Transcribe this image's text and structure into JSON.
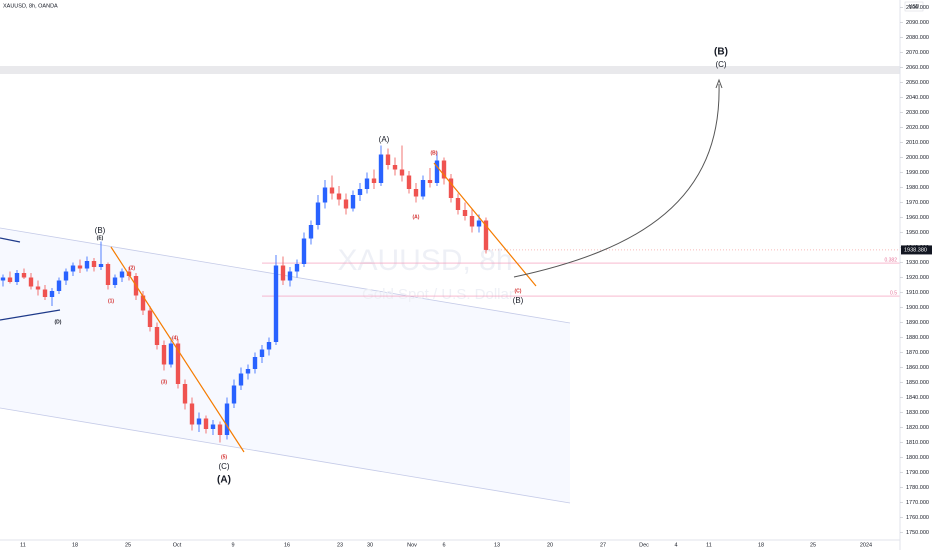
{
  "header": {
    "symbol": "XAUUSD, 8h, OANDA",
    "currency": "USD"
  },
  "chart_data": {
    "type": "candlestick",
    "watermark": "XAUUSD, 8h",
    "watermark_sub": "Gold Spot / U.S. Dollar",
    "up_color": "#2962ff",
    "down_color": "#ef5350",
    "open": [
      1918,
      1920,
      1917,
      1923,
      1920,
      1914,
      1912,
      1907,
      1911,
      1918,
      1924,
      1928,
      1926,
      1931,
      1927,
      1929,
      1915,
      1920,
      1924,
      1921,
      1908,
      1898,
      1887,
      1875,
      1862,
      1876,
      1849,
      1836,
      1822,
      1826,
      1819,
      1822,
      1815,
      1836,
      1848,
      1856,
      1859,
      1867,
      1872,
      1877,
      1928,
      1918,
      1924,
      1929,
      1946,
      1955,
      1970,
      1980,
      1976,
      1972,
      1966,
      1975,
      1979,
      1986,
      1983,
      2002,
      1995,
      1992,
      1988,
      1979,
      1974,
      1985,
      1983,
      1998,
      1986,
      1973,
      1965,
      1961,
      1954,
      1958
    ],
    "high": [
      1922,
      1924,
      1925,
      1926,
      1923,
      1918,
      1915,
      1913,
      1920,
      1926,
      1930,
      1932,
      1934,
      1933,
      1944,
      1930,
      1922,
      1926,
      1927,
      1923,
      1911,
      1901,
      1890,
      1878,
      1880,
      1879,
      1852,
      1840,
      1830,
      1828,
      1825,
      1824,
      1840,
      1852,
      1860,
      1862,
      1870,
      1875,
      1880,
      1935,
      1934,
      1927,
      1932,
      1950,
      1958,
      1975,
      1985,
      1988,
      1981,
      1976,
      1978,
      1983,
      1990,
      1992,
      2008,
      2006,
      2000,
      2008,
      1991,
      1983,
      1988,
      1993,
      2004,
      2000,
      1989,
      1976,
      1970,
      1966,
      1962,
      1960
    ],
    "low": [
      1914,
      1916,
      1915,
      1919,
      1912,
      1908,
      1905,
      1901,
      1909,
      1915,
      1921,
      1923,
      1924,
      1924,
      1925,
      1912,
      1913,
      1917,
      1918,
      1905,
      1895,
      1884,
      1872,
      1858,
      1860,
      1846,
      1832,
      1818,
      1817,
      1816,
      1815,
      1810,
      1812,
      1833,
      1845,
      1852,
      1856,
      1863,
      1868,
      1875,
      1915,
      1914,
      1920,
      1927,
      1942,
      1952,
      1966,
      1972,
      1968,
      1962,
      1964,
      1971,
      1976,
      1979,
      1981,
      1992,
      1988,
      1984,
      1976,
      1970,
      1972,
      1980,
      1981,
      1982,
      1970,
      1962,
      1958,
      1950,
      1950,
      1936
    ],
    "close": [
      1920,
      1917,
      1923,
      1920,
      1914,
      1912,
      1907,
      1911,
      1918,
      1924,
      1928,
      1926,
      1931,
      1927,
      1929,
      1915,
      1920,
      1924,
      1921,
      1908,
      1898,
      1887,
      1875,
      1862,
      1876,
      1849,
      1836,
      1822,
      1826,
      1819,
      1822,
      1815,
      1836,
      1848,
      1856,
      1859,
      1867,
      1872,
      1877,
      1928,
      1918,
      1924,
      1929,
      1946,
      1955,
      1970,
      1980,
      1976,
      1972,
      1966,
      1975,
      1979,
      1986,
      1983,
      2002,
      1995,
      1992,
      1988,
      1979,
      1974,
      1985,
      1983,
      1998,
      1986,
      1973,
      1965,
      1961,
      1954,
      1958,
      1938.38
    ],
    "last_price_label": "1938.380",
    "ylim": [
      1745,
      2105
    ],
    "yticks": [
      {
        "value": 2100,
        "label": "2100.000"
      },
      {
        "value": 2090,
        "label": "2090.000"
      },
      {
        "value": 2080,
        "label": "2080.000"
      },
      {
        "value": 2070,
        "label": "2070.000"
      },
      {
        "value": 2060,
        "label": "2060.000"
      },
      {
        "value": 2050,
        "label": "2050.000"
      },
      {
        "value": 2040,
        "label": "2040.000"
      },
      {
        "value": 2030,
        "label": "2030.000"
      },
      {
        "value": 2020,
        "label": "2020.000"
      },
      {
        "value": 2010,
        "label": "2010.000"
      },
      {
        "value": 2000,
        "label": "2000.000"
      },
      {
        "value": 1990,
        "label": "1990.000"
      },
      {
        "value": 1980,
        "label": "1980.000"
      },
      {
        "value": 1970,
        "label": "1970.000"
      },
      {
        "value": 1960,
        "label": "1960.000"
      },
      {
        "value": 1950,
        "label": "1950.000"
      },
      {
        "value": 1940,
        "label": "1940.000"
      },
      {
        "value": 1930,
        "label": "1930.000"
      },
      {
        "value": 1920,
        "label": "1920.000"
      },
      {
        "value": 1910,
        "label": "1910.000"
      },
      {
        "value": 1900,
        "label": "1900.000"
      },
      {
        "value": 1890,
        "label": "1890.000"
      },
      {
        "value": 1880,
        "label": "1880.000"
      },
      {
        "value": 1870,
        "label": "1870.000"
      },
      {
        "value": 1860,
        "label": "1860.000"
      },
      {
        "value": 1850,
        "label": "1850.000"
      },
      {
        "value": 1840,
        "label": "1840.000"
      },
      {
        "value": 1830,
        "label": "1830.000"
      },
      {
        "value": 1820,
        "label": "1820.000"
      },
      {
        "value": 1810,
        "label": "1810.000"
      },
      {
        "value": 1800,
        "label": "1800.000"
      },
      {
        "value": 1790,
        "label": "1790.000"
      },
      {
        "value": 1780,
        "label": "1780.000"
      },
      {
        "value": 1770,
        "label": "1770.000"
      },
      {
        "value": 1760,
        "label": "1760.000"
      },
      {
        "value": 1750,
        "label": "1750.000"
      }
    ],
    "x_tick_labels": [
      "11",
      "18",
      "25",
      "Oct",
      "9",
      "16",
      "23",
      "30",
      "Nov",
      "6",
      "13",
      "20",
      "27",
      "Dec",
      "4",
      "11",
      "18",
      "25",
      "2024"
    ],
    "fib_levels": [
      {
        "label": "0.382",
        "value": 1929.6
      },
      {
        "label": "0.5",
        "value": 1907.6
      }
    ],
    "annotations": [
      "(B)",
      "(E)",
      "(D)",
      "(1)",
      "(2)",
      "(3)",
      "(4)",
      "(5)",
      "(C)",
      "(A)",
      "(A)",
      "(A)",
      "(B)",
      "(C)",
      "(B)",
      "(B)",
      "(C)"
    ]
  }
}
